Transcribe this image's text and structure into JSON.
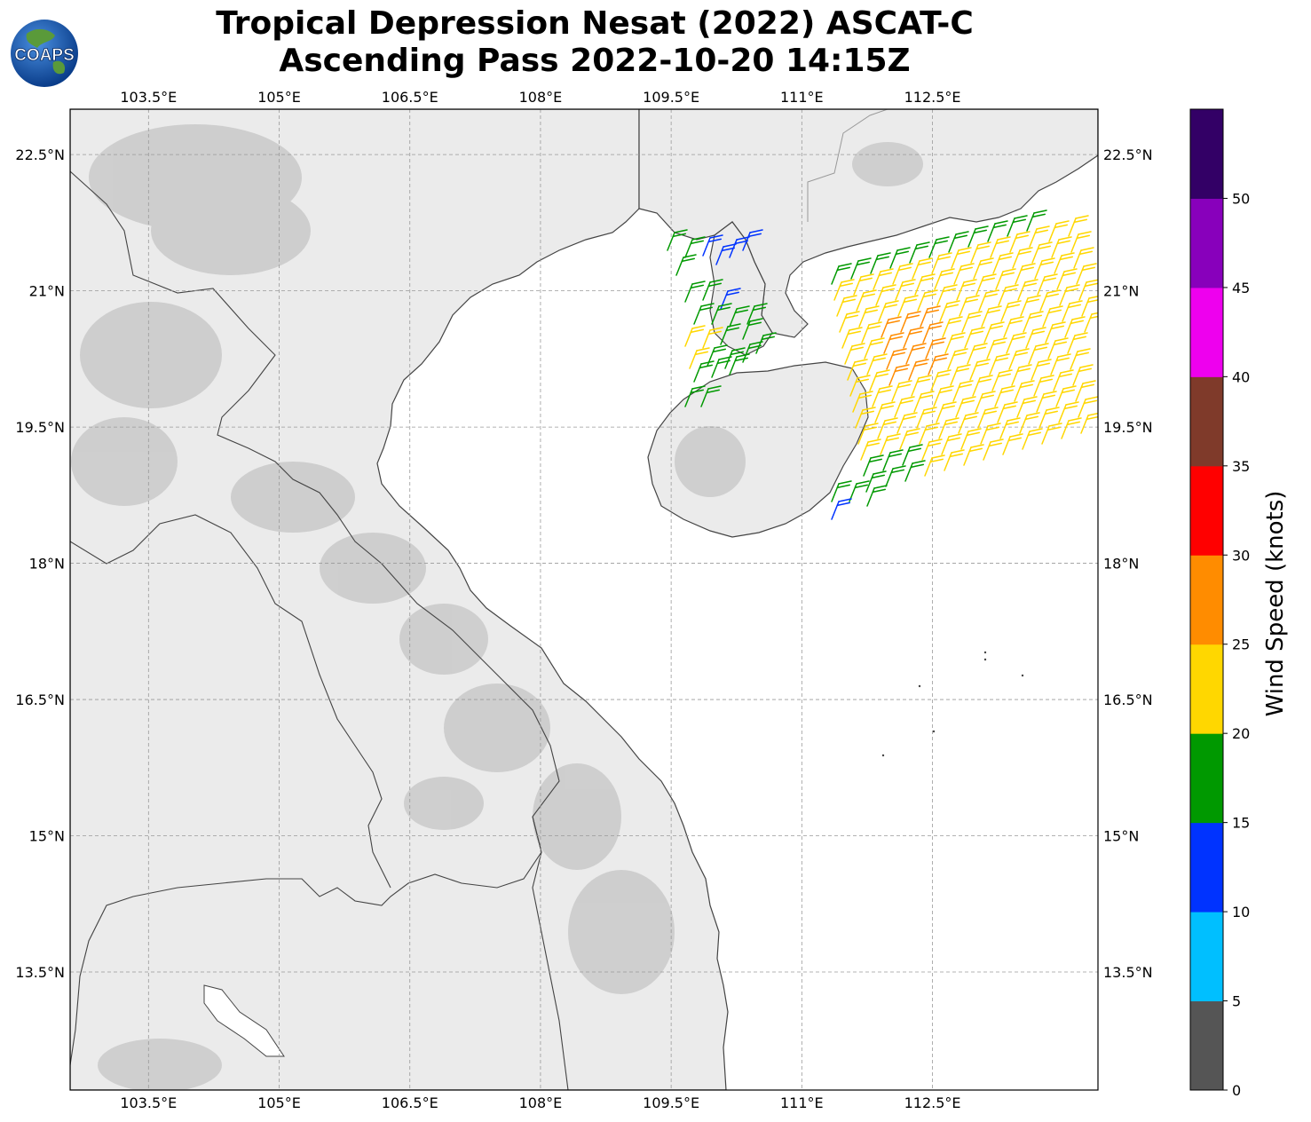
{
  "title": {
    "line1": "Tropical Depression Nesat (2022) ASCAT-C",
    "line2": "Ascending Pass 2022-10-20 14:15Z"
  },
  "logo": {
    "text": "COAPS",
    "icon": "coaps-globe-logo-icon"
  },
  "map": {
    "lon_range": [
      102.6,
      114.4
    ],
    "lat_range": [
      12.2,
      23.0
    ],
    "lon_ticks": [
      "103.5°E",
      "105°E",
      "106.5°E",
      "108°E",
      "109.5°E",
      "111°E",
      "112.5°E"
    ],
    "lon_tick_values": [
      103.5,
      105,
      106.5,
      108,
      109.5,
      111,
      112.5
    ],
    "lat_ticks": [
      "22.5°N",
      "21°N",
      "19.5°N",
      "18°N",
      "16.5°N",
      "15°N",
      "13.5°N"
    ],
    "lat_tick_values": [
      22.5,
      21,
      19.5,
      18,
      16.5,
      15,
      13.5
    ],
    "gridlines": true
  },
  "colorbar": {
    "label": "Wind Speed (knots)",
    "tick_labels": [
      "0",
      "5",
      "10",
      "15",
      "20",
      "25",
      "30",
      "35",
      "40",
      "45",
      "50"
    ],
    "colors": [
      "#555555",
      "#00bfff",
      "#0033ff",
      "#009900",
      "#ffd700",
      "#ff8c00",
      "#ff0000",
      "#7f3a2a",
      "#ee00ee",
      "#8800bb",
      "#330066"
    ]
  }
}
